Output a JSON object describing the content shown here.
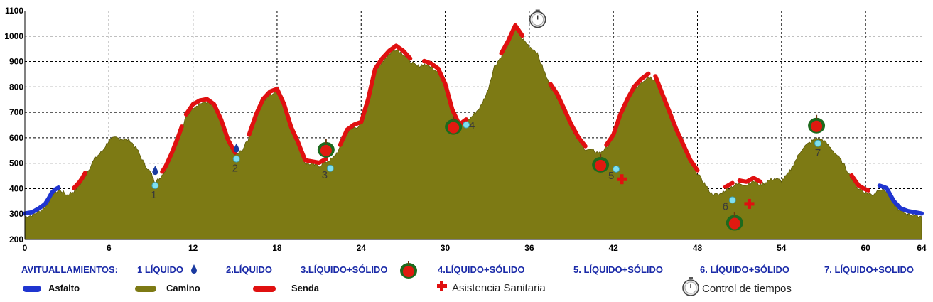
{
  "chart_data": {
    "type": "area",
    "xlim": [
      0,
      64
    ],
    "ylim": [
      200,
      1100
    ],
    "x_ticks": [
      "0",
      "6",
      "12",
      "18",
      "24",
      "30",
      "36",
      "42",
      "48",
      "54",
      "60",
      "64"
    ],
    "y_ticks": [
      "200",
      "300",
      "400",
      "500",
      "600",
      "700",
      "800",
      "900",
      "1000",
      "1100"
    ],
    "grid": true,
    "profile": [
      [
        0,
        290
      ],
      [
        0.5,
        295
      ],
      [
        1,
        310
      ],
      [
        1.5,
        330
      ],
      [
        2,
        380
      ],
      [
        2.5,
        395
      ],
      [
        3,
        375
      ],
      [
        3.5,
        390
      ],
      [
        4,
        420
      ],
      [
        4.5,
        470
      ],
      [
        5,
        520
      ],
      [
        5.5,
        545
      ],
      [
        6,
        590
      ],
      [
        6.5,
        600
      ],
      [
        7,
        595
      ],
      [
        7.5,
        590
      ],
      [
        8,
        555
      ],
      [
        8.5,
        500
      ],
      [
        9,
        460
      ],
      [
        9.3,
        425
      ],
      [
        9.6,
        440
      ],
      [
        10,
        470
      ],
      [
        10.5,
        530
      ],
      [
        11,
        600
      ],
      [
        11.5,
        680
      ],
      [
        12,
        720
      ],
      [
        12.5,
        735
      ],
      [
        13,
        740
      ],
      [
        13.5,
        720
      ],
      [
        14,
        660
      ],
      [
        14.5,
        580
      ],
      [
        15,
        530
      ],
      [
        15.5,
        550
      ],
      [
        16,
        600
      ],
      [
        16.5,
        680
      ],
      [
        17,
        740
      ],
      [
        17.5,
        770
      ],
      [
        18,
        780
      ],
      [
        18.5,
        720
      ],
      [
        19,
        630
      ],
      [
        19.5,
        570
      ],
      [
        20,
        500
      ],
      [
        20.5,
        495
      ],
      [
        21,
        490
      ],
      [
        21.5,
        505
      ],
      [
        22,
        520
      ],
      [
        22.5,
        560
      ],
      [
        23,
        620
      ],
      [
        23.5,
        640
      ],
      [
        24,
        650
      ],
      [
        24.5,
        740
      ],
      [
        25,
        860
      ],
      [
        25.5,
        900
      ],
      [
        26,
        930
      ],
      [
        26.5,
        950
      ],
      [
        27,
        930
      ],
      [
        27.5,
        900
      ],
      [
        28,
        880
      ],
      [
        28.5,
        890
      ],
      [
        29,
        880
      ],
      [
        29.5,
        860
      ],
      [
        30,
        800
      ],
      [
        30.5,
        700
      ],
      [
        31,
        640
      ],
      [
        31.5,
        660
      ],
      [
        32,
        690
      ],
      [
        32.5,
        720
      ],
      [
        33,
        780
      ],
      [
        33.5,
        880
      ],
      [
        34,
        920
      ],
      [
        34.5,
        970
      ],
      [
        35,
        1030
      ],
      [
        35.5,
        990
      ],
      [
        36,
        960
      ],
      [
        36.5,
        940
      ],
      [
        37,
        870
      ],
      [
        37.5,
        800
      ],
      [
        38,
        760
      ],
      [
        38.5,
        700
      ],
      [
        39,
        640
      ],
      [
        39.5,
        590
      ],
      [
        40,
        555
      ],
      [
        40.5,
        550
      ],
      [
        41,
        540
      ],
      [
        41.5,
        560
      ],
      [
        42,
        600
      ],
      [
        42.5,
        680
      ],
      [
        43,
        740
      ],
      [
        43.5,
        790
      ],
      [
        44,
        820
      ],
      [
        44.5,
        840
      ],
      [
        45,
        830
      ],
      [
        45.5,
        760
      ],
      [
        46,
        690
      ],
      [
        46.5,
        620
      ],
      [
        47,
        560
      ],
      [
        47.5,
        500
      ],
      [
        48,
        460
      ],
      [
        48.5,
        420
      ],
      [
        49,
        380
      ],
      [
        49.5,
        375
      ],
      [
        50,
        395
      ],
      [
        50.5,
        410
      ],
      [
        51,
        420
      ],
      [
        51.5,
        415
      ],
      [
        52,
        430
      ],
      [
        52.5,
        415
      ],
      [
        53,
        430
      ],
      [
        53.5,
        440
      ],
      [
        54,
        430
      ],
      [
        54.5,
        460
      ],
      [
        55,
        510
      ],
      [
        55.5,
        560
      ],
      [
        56,
        580
      ],
      [
        56.5,
        600
      ],
      [
        57,
        590
      ],
      [
        57.5,
        560
      ],
      [
        58,
        530
      ],
      [
        58.5,
        490
      ],
      [
        59,
        440
      ],
      [
        59.5,
        400
      ],
      [
        60,
        385
      ],
      [
        60.5,
        375
      ],
      [
        61,
        400
      ],
      [
        61.5,
        390
      ],
      [
        62,
        340
      ],
      [
        62.5,
        310
      ],
      [
        63,
        300
      ],
      [
        63.5,
        295
      ],
      [
        64,
        290
      ]
    ],
    "asfalto_segments": [
      [
        0,
        2.4
      ],
      [
        61,
        64
      ]
    ],
    "senda_segments": [
      [
        3.5,
        4.3
      ],
      [
        9.8,
        11.2
      ],
      [
        11.5,
        15
      ],
      [
        16,
        21.5
      ],
      [
        22.5,
        27.5
      ],
      [
        28.5,
        31.5
      ],
      [
        34,
        35.5
      ],
      [
        37.5,
        40
      ],
      [
        41.5,
        44.5
      ],
      [
        45,
        48
      ],
      [
        50,
        50.5
      ],
      [
        51,
        52.5
      ],
      [
        59,
        60.2
      ]
    ],
    "stations": [
      {
        "num": "1",
        "x": 9.3,
        "y": 412,
        "type": "liquid"
      },
      {
        "num": "2",
        "x": 15.1,
        "y": 517,
        "type": "liquid"
      },
      {
        "num": "3",
        "x": 21.8,
        "y": 480,
        "type": "solid"
      },
      {
        "num": "4",
        "x": 31.5,
        "y": 651,
        "type": "solid"
      },
      {
        "num": "5",
        "x": 42.2,
        "y": 477,
        "type": "solid"
      },
      {
        "num": "6",
        "x": 50.5,
        "y": 355,
        "type": "solid"
      },
      {
        "num": "7",
        "x": 56.6,
        "y": 578,
        "type": "solid"
      }
    ],
    "medical_points": [
      [
        42.6,
        437
      ],
      [
        51.7,
        340
      ]
    ],
    "timing_point": [
      36.6,
      1065
    ],
    "colors": {
      "terrain": "#7d7a14",
      "asfalto": "#1f35d0",
      "senda": "#e01010",
      "station": "#7fe0f0",
      "grid": "#000000"
    }
  },
  "legend": {
    "avituallamientos": "AVITUALLAMIENTOS:",
    "s1": "1 LÍQUIDO",
    "s2": "2.LÍQUIDO",
    "s3": "3.LÍQUIDO+SÓLIDO",
    "s4": "4.LÍQUIDO+SÓLIDO",
    "s5": "5. LÍQUIDO+SÓLIDO",
    "s6": "6. LÍQUIDO+SÓLIDO",
    "s7": "7. LÍQUIDO+SOLIDO",
    "asfalto": "Asfalto",
    "camino": "Camino",
    "senda": "Senda",
    "asistencia": "Asistencia Sanitaria",
    "control": "Control de tiempos"
  }
}
